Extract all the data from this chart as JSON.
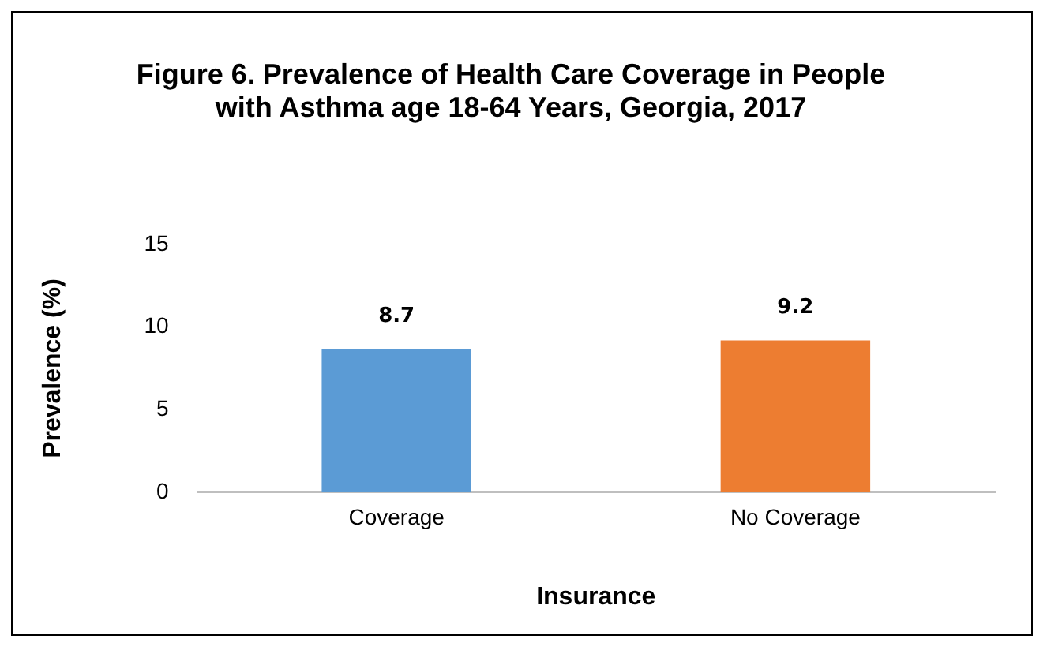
{
  "chart_data": {
    "type": "bar",
    "title": "Figure 6. Prevalence of Health Care Coverage in People with Asthma age 18-64 Years, Georgia, 2017",
    "xlabel": "Insurance",
    "ylabel": "Prevalence (%)",
    "categories": [
      "Coverage",
      "No Coverage"
    ],
    "values": [
      8.7,
      9.2
    ],
    "colors": [
      "#5b9bd5",
      "#ed7d31"
    ],
    "ylim": [
      0,
      15
    ],
    "yticks": [
      0,
      5,
      10,
      15
    ],
    "grid": false,
    "legend": false,
    "data_labels": true
  }
}
